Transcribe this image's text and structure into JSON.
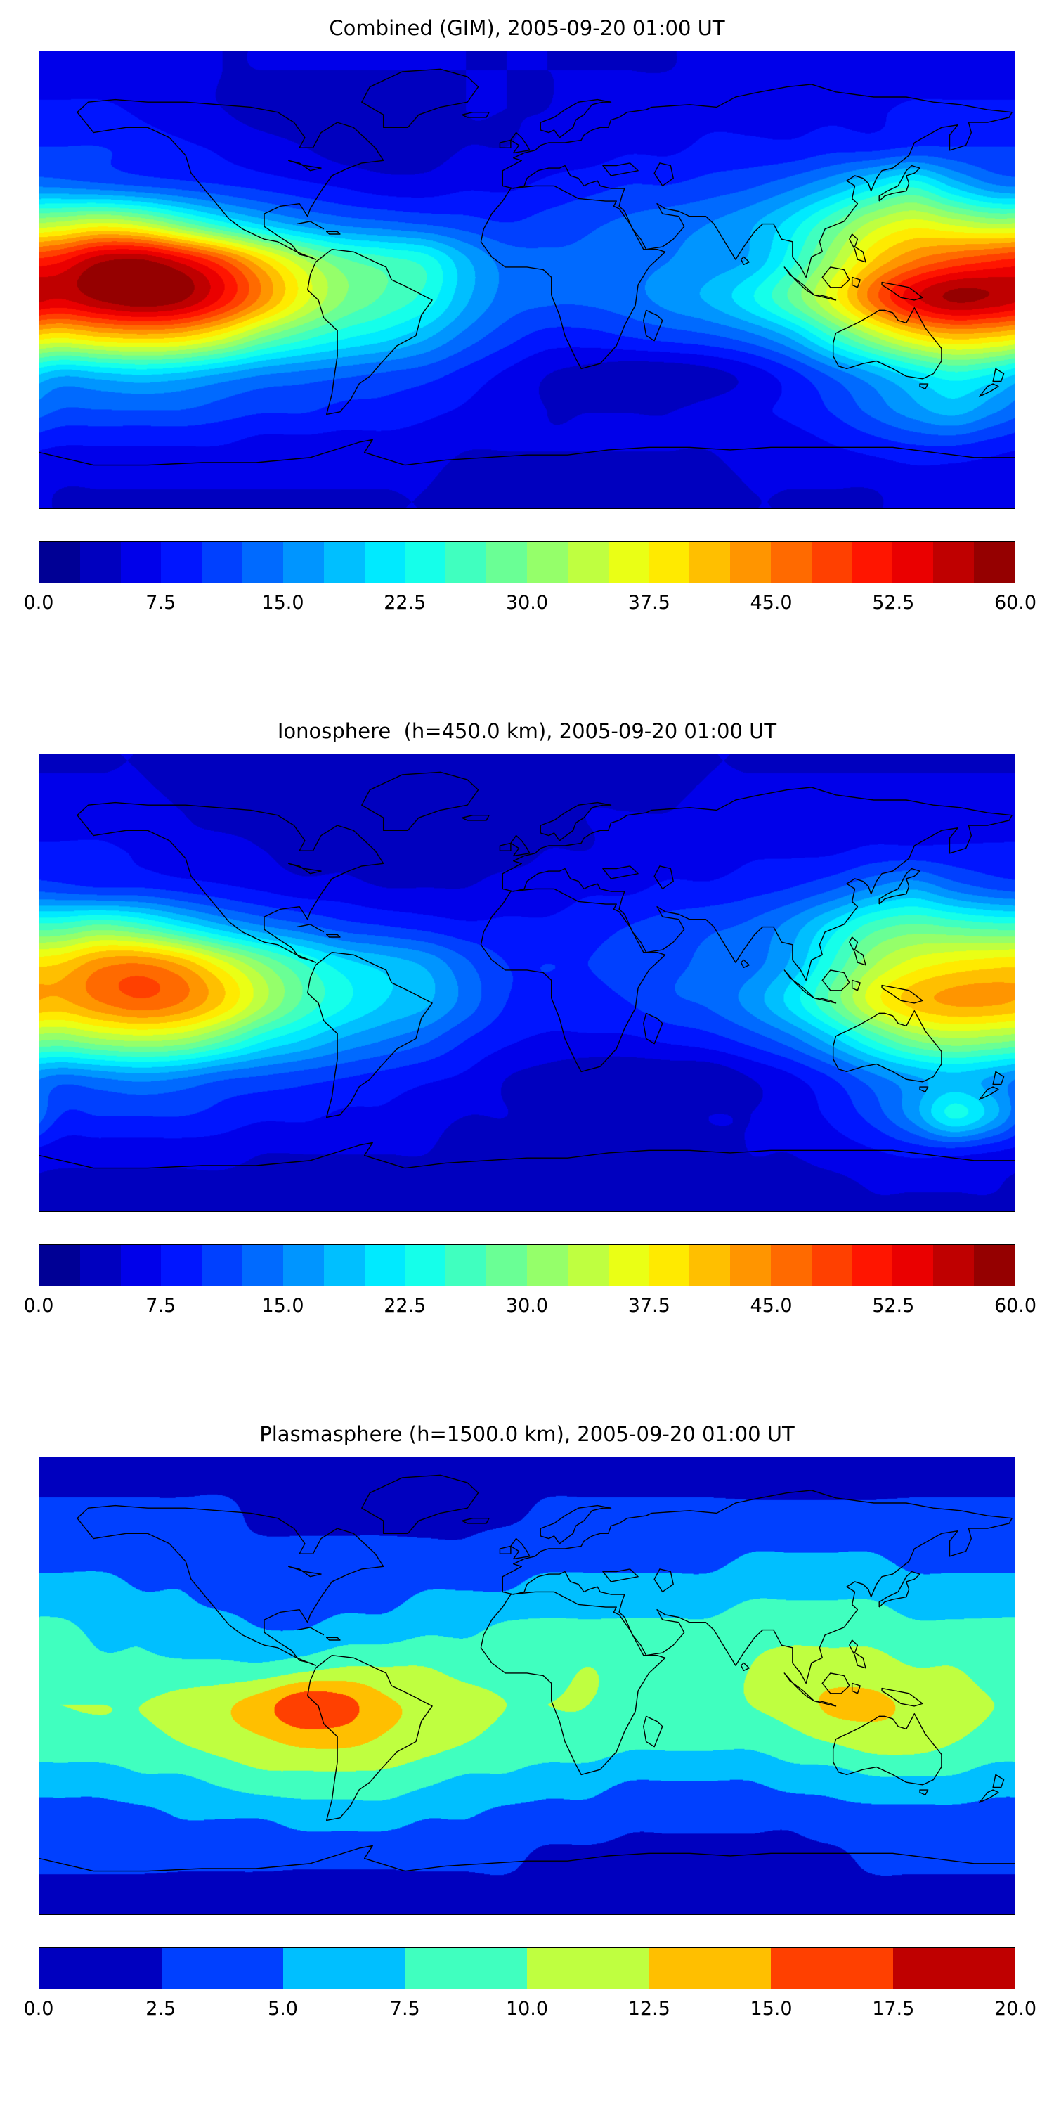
{
  "figure": {
    "background": "#ffffff",
    "n_panels": 3
  },
  "chart_data": [
    {
      "type": "heatmap",
      "title": "Combined (GIM), 2005-09-20 01:00 UT",
      "colormap": "jet",
      "projection": "equirectangular",
      "vmin": 0.0,
      "vmax": 60.0,
      "level_step": 2.5,
      "n_levels": 24,
      "colorbar_ticks": [
        "0.0",
        "7.5",
        "15.0",
        "22.5",
        "30.0",
        "37.5",
        "45.0",
        "52.5",
        "60.0"
      ],
      "lon_min": -180,
      "lon_max": 180,
      "lat_min": -90,
      "lat_max": 90,
      "grid": {
        "lon_center_start": -172.5,
        "lon_step": 15,
        "lat_center_start": 82.5,
        "lat_step": -15,
        "values": [
          [
            6,
            6,
            6,
            6,
            5,
            5,
            5,
            5,
            5,
            5,
            5,
            5,
            5,
            5,
            5,
            5,
            6,
            6,
            6,
            6,
            6,
            6,
            6,
            6
          ],
          [
            8,
            8,
            7,
            6,
            5,
            4,
            4,
            4,
            4,
            4,
            5,
            5,
            5,
            6,
            6,
            7,
            7,
            7,
            7,
            7,
            7,
            8,
            8,
            8
          ],
          [
            10,
            10,
            9,
            8,
            7,
            6,
            5,
            4,
            4,
            4,
            5,
            5,
            6,
            6,
            7,
            7,
            8,
            8,
            8,
            9,
            9,
            10,
            10,
            10
          ],
          [
            14,
            13,
            12,
            11,
            10,
            9,
            8,
            7,
            6,
            6,
            7,
            7,
            8,
            9,
            10,
            10,
            11,
            12,
            14,
            17,
            21,
            24,
            19,
            15
          ],
          [
            33,
            35,
            33,
            28,
            23,
            19,
            16,
            14,
            13,
            12,
            11,
            10,
            11,
            12,
            13,
            14,
            15,
            17,
            21,
            27,
            33,
            36,
            34,
            32
          ],
          [
            52,
            57,
            58,
            54,
            48,
            40,
            33,
            28,
            26,
            24,
            18,
            14,
            13,
            13,
            14,
            15,
            16,
            18,
            24,
            32,
            40,
            45,
            48,
            50
          ],
          [
            55,
            58,
            60,
            58,
            52,
            44,
            36,
            30,
            27,
            24,
            18,
            14,
            13,
            13,
            14,
            16,
            18,
            22,
            28,
            36,
            46,
            54,
            58,
            57
          ],
          [
            38,
            40,
            41,
            40,
            36,
            30,
            26,
            23,
            21,
            18,
            14,
            11,
            9,
            9,
            10,
            11,
            12,
            14,
            18,
            25,
            32,
            38,
            41,
            40
          ],
          [
            18,
            19,
            20,
            19,
            17,
            15,
            14,
            13,
            12,
            11,
            9,
            7,
            5,
            4,
            3,
            3,
            4,
            6,
            9,
            13,
            17,
            21,
            24,
            22
          ],
          [
            12,
            12,
            12,
            12,
            11,
            10,
            10,
            9,
            9,
            8,
            7,
            6,
            5,
            5,
            5,
            5,
            6,
            7,
            8,
            10,
            13,
            16,
            18,
            15
          ],
          [
            7,
            7,
            7,
            7,
            7,
            6,
            6,
            6,
            6,
            6,
            5,
            5,
            5,
            5,
            5,
            5,
            5,
            6,
            6,
            7,
            8,
            9,
            9,
            8
          ],
          [
            5,
            5,
            5,
            5,
            5,
            5,
            5,
            5,
            5,
            5,
            4,
            4,
            4,
            4,
            4,
            4,
            4,
            5,
            5,
            5,
            5,
            6,
            6,
            6
          ]
        ]
      }
    },
    {
      "type": "heatmap",
      "title": "Ionosphere  (h=450.0 km), 2005-09-20 01:00 UT",
      "colormap": "jet",
      "projection": "equirectangular",
      "vmin": 0.0,
      "vmax": 60.0,
      "level_step": 2.5,
      "n_levels": 24,
      "colorbar_ticks": [
        "0.0",
        "7.5",
        "15.0",
        "22.5",
        "30.0",
        "37.5",
        "45.0",
        "52.5",
        "60.0"
      ],
      "lon_min": -180,
      "lon_max": 180,
      "lat_min": -90,
      "lat_max": 90,
      "grid": {
        "lon_center_start": -172.5,
        "lon_step": 15,
        "lat_center_start": 82.5,
        "lat_step": -15,
        "values": [
          [
            5,
            5,
            5,
            4,
            4,
            4,
            4,
            4,
            4,
            4,
            4,
            4,
            4,
            4,
            4,
            4,
            5,
            5,
            5,
            5,
            5,
            5,
            5,
            5
          ],
          [
            6,
            6,
            6,
            5,
            4,
            4,
            3,
            3,
            3,
            3,
            4,
            4,
            4,
            5,
            5,
            5,
            6,
            6,
            6,
            6,
            6,
            6,
            6,
            6
          ],
          [
            8,
            8,
            7,
            6,
            6,
            5,
            4,
            4,
            3,
            3,
            4,
            4,
            5,
            5,
            6,
            6,
            6,
            7,
            7,
            7,
            8,
            8,
            8,
            8
          ],
          [
            11,
            10,
            10,
            9,
            8,
            7,
            6,
            6,
            5,
            5,
            5,
            6,
            6,
            7,
            7,
            8,
            8,
            9,
            10,
            12,
            15,
            17,
            14,
            12
          ],
          [
            26,
            28,
            26,
            22,
            18,
            15,
            13,
            11,
            10,
            9,
            8,
            8,
            8,
            9,
            10,
            11,
            12,
            13,
            16,
            21,
            26,
            28,
            27,
            26
          ],
          [
            40,
            44,
            45,
            42,
            36,
            30,
            25,
            21,
            19,
            17,
            13,
            10,
            10,
            10,
            11,
            12,
            13,
            14,
            18,
            25,
            32,
            36,
            38,
            39
          ],
          [
            42,
            45,
            47,
            45,
            40,
            33,
            27,
            23,
            20,
            18,
            14,
            10,
            9,
            9,
            10,
            12,
            13,
            16,
            21,
            28,
            36,
            41,
            43,
            43
          ],
          [
            30,
            32,
            33,
            32,
            28,
            23,
            20,
            17,
            15,
            13,
            10,
            8,
            7,
            7,
            7,
            8,
            9,
            11,
            14,
            19,
            25,
            30,
            32,
            31
          ],
          [
            14,
            15,
            16,
            15,
            13,
            12,
            11,
            10,
            9,
            8,
            7,
            5,
            4,
            3,
            3,
            3,
            3,
            5,
            7,
            10,
            14,
            17,
            19,
            17
          ],
          [
            10,
            10,
            10,
            10,
            9,
            8,
            8,
            7,
            7,
            6,
            5,
            5,
            4,
            4,
            4,
            4,
            5,
            5,
            6,
            8,
            11,
            16,
            23,
            18
          ],
          [
            6,
            6,
            6,
            6,
            6,
            5,
            5,
            5,
            5,
            5,
            4,
            4,
            4,
            4,
            4,
            4,
            4,
            5,
            5,
            6,
            7,
            8,
            8,
            7
          ],
          [
            4,
            4,
            4,
            4,
            4,
            4,
            4,
            4,
            4,
            4,
            4,
            4,
            4,
            4,
            4,
            4,
            4,
            4,
            4,
            4,
            5,
            5,
            5,
            5
          ]
        ]
      }
    },
    {
      "type": "heatmap",
      "title": "Plasmasphere (h=1500.0 km), 2005-09-20 01:00 UT",
      "colormap": "jet",
      "projection": "equirectangular",
      "vmin": 0.0,
      "vmax": 20.0,
      "level_step": 2.5,
      "n_levels": 8,
      "colorbar_ticks": [
        "0.0",
        "2.5",
        "5.0",
        "7.5",
        "10.0",
        "12.5",
        "15.0",
        "17.5",
        "20.0"
      ],
      "lon_min": -180,
      "lon_max": 180,
      "lat_min": -90,
      "lat_max": 90,
      "grid": {
        "lon_center_start": -172.5,
        "lon_step": 15,
        "lat_center_start": 82.5,
        "lat_step": -15,
        "values": [
          [
            2,
            2,
            2,
            2,
            2,
            2,
            2,
            2,
            2,
            2,
            2,
            2,
            2,
            2,
            2,
            2,
            2,
            2,
            2,
            2,
            2,
            2,
            2,
            2
          ],
          [
            3,
            3,
            3,
            3,
            3,
            2,
            2,
            2,
            2,
            2,
            2,
            2,
            3,
            3,
            3,
            3,
            3,
            3,
            3,
            3,
            3,
            3,
            3,
            3
          ],
          [
            4,
            4,
            4,
            4,
            3,
            3,
            3,
            3,
            3,
            3,
            3,
            4,
            4,
            4,
            4,
            4,
            4,
            5,
            5,
            5,
            5,
            4,
            4,
            4
          ],
          [
            6,
            6,
            5,
            5,
            4,
            4,
            4,
            4,
            4,
            5,
            5,
            5,
            6,
            6,
            6,
            6,
            6,
            7,
            7,
            7,
            7,
            6,
            6,
            6
          ],
          [
            8,
            7,
            7,
            6,
            6,
            5,
            5,
            6,
            6,
            7,
            7,
            8,
            8,
            8,
            8,
            8,
            8,
            9,
            9,
            9,
            9,
            8,
            8,
            8
          ],
          [
            9,
            8,
            8,
            8,
            8,
            8,
            9,
            10,
            10,
            10,
            9,
            9,
            9,
            10,
            9,
            9,
            9,
            10,
            11,
            11,
            11,
            10,
            10,
            9
          ],
          [
            10,
            10,
            10,
            11,
            12,
            14,
            17,
            16,
            13,
            12,
            11,
            10,
            10,
            10,
            9,
            9,
            9,
            10,
            11,
            13,
            13,
            12,
            11,
            10
          ],
          [
            9,
            9,
            9,
            10,
            11,
            12,
            13,
            13,
            12,
            11,
            10,
            9,
            9,
            9,
            8,
            8,
            8,
            8,
            9,
            10,
            11,
            11,
            10,
            9
          ],
          [
            6,
            6,
            7,
            7,
            8,
            9,
            9,
            9,
            9,
            8,
            7,
            7,
            6,
            6,
            5,
            5,
            5,
            5,
            6,
            6,
            7,
            7,
            7,
            6
          ],
          [
            4,
            4,
            4,
            5,
            5,
            5,
            6,
            6,
            6,
            5,
            5,
            4,
            4,
            4,
            3,
            3,
            3,
            3,
            3,
            4,
            4,
            4,
            4,
            4
          ],
          [
            3,
            3,
            3,
            3,
            3,
            3,
            3,
            3,
            3,
            3,
            3,
            3,
            2,
            2,
            2,
            2,
            2,
            2,
            2,
            2,
            3,
            3,
            3,
            3
          ],
          [
            2,
            2,
            2,
            2,
            2,
            2,
            2,
            2,
            2,
            2,
            2,
            2,
            2,
            2,
            2,
            2,
            2,
            2,
            2,
            2,
            2,
            2,
            2,
            2
          ]
        ]
      }
    }
  ]
}
